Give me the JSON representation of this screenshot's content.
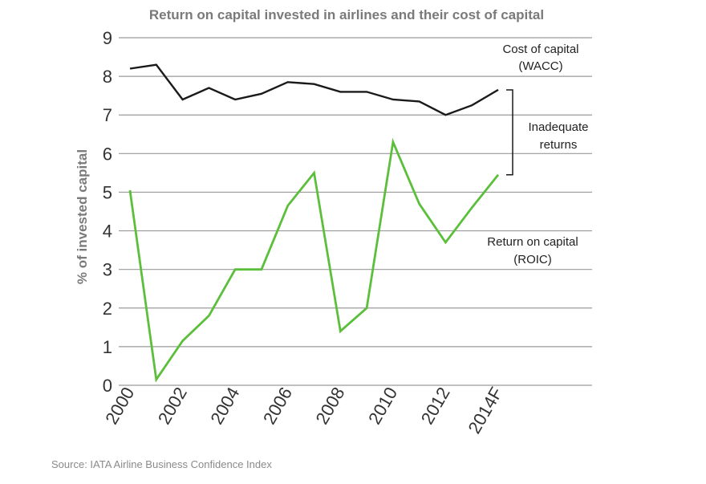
{
  "chart_data": {
    "type": "line",
    "title": "Return on capital invested in airlines and their cost of capital",
    "ylabel": "% of invested capital",
    "xlabel": "",
    "ylim": [
      0,
      9
    ],
    "yticks": [
      0,
      1,
      2,
      3,
      4,
      5,
      6,
      7,
      8,
      9
    ],
    "grid": true,
    "x": [
      2000,
      2001,
      2002,
      2003,
      2004,
      2005,
      2006,
      2007,
      2008,
      2009,
      2010,
      2011,
      2012,
      2013,
      2014
    ],
    "xtick_labels": [
      "2000",
      "2002",
      "2004",
      "2006",
      "2008",
      "2010",
      "2012",
      "2014F"
    ],
    "xtick_values": [
      2000,
      2002,
      2004,
      2006,
      2008,
      2010,
      2012,
      2014
    ],
    "series": [
      {
        "name": "Cost of capital (WACC)",
        "label_lines": [
          "Cost of capital",
          "(WACC)"
        ],
        "color": "#1a1a1a",
        "values": [
          8.2,
          8.3,
          7.4,
          7.7,
          7.4,
          7.55,
          7.85,
          7.8,
          7.6,
          7.6,
          7.4,
          7.35,
          7.0,
          7.25,
          7.65
        ]
      },
      {
        "name": "Return on capital (ROIC)",
        "label_lines": [
          "Return on  capital",
          "(ROIC)"
        ],
        "color": "#5cbf3c",
        "values": [
          5.05,
          0.15,
          1.15,
          1.8,
          3.0,
          3.0,
          4.65,
          5.5,
          1.4,
          2.0,
          6.3,
          4.7,
          3.7,
          4.6,
          5.45
        ]
      }
    ],
    "annotations": [
      {
        "text_lines": [
          "Inadequate",
          "returns"
        ],
        "bracket_from": 7.65,
        "bracket_to": 5.45,
        "at_x": 2014
      }
    ],
    "source": "Source: IATA Airline Business Confidence Index"
  }
}
